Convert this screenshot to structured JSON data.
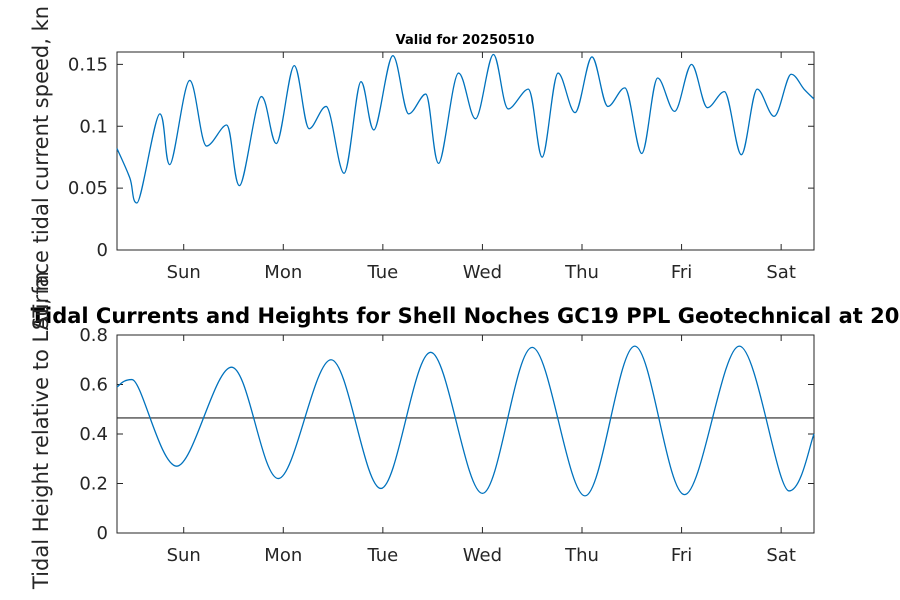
{
  "chart_data": [
    {
      "type": "line",
      "title": "Valid for 20250510",
      "ylabel": "Surface tidal current speed, kn",
      "xlabel": "",
      "x_tick_labels": [
        "Sun",
        "Mon",
        "Tue",
        "Wed",
        "Thu",
        "Fri",
        "Sat"
      ],
      "x_range_days": [
        0,
        7
      ],
      "x_tick_days": [
        0.67,
        1.67,
        2.67,
        3.67,
        4.67,
        5.67,
        6.67
      ],
      "ylim": [
        0,
        0.16
      ],
      "y_ticks": [
        0,
        0.05,
        0.1,
        0.15
      ],
      "y_tick_labels": [
        "0",
        "0.05",
        "0.1",
        "0.15"
      ],
      "series": [
        {
          "color": "#0072bd",
          "x": [
            0.0,
            0.13,
            0.2,
            0.43,
            0.53,
            0.73,
            0.9,
            1.1,
            1.23,
            1.45,
            1.6,
            1.78,
            1.93,
            2.1,
            2.28,
            2.45,
            2.58,
            2.77,
            2.93,
            3.1,
            3.23,
            3.43,
            3.6,
            3.78,
            3.93,
            4.13,
            4.27,
            4.43,
            4.6,
            4.77,
            4.93,
            5.1,
            5.27,
            5.43,
            5.6,
            5.77,
            5.93,
            6.1,
            6.27,
            6.43,
            6.6,
            6.77,
            6.9,
            7.0
          ],
          "values": [
            0.082,
            0.058,
            0.038,
            0.11,
            0.069,
            0.137,
            0.084,
            0.101,
            0.052,
            0.124,
            0.086,
            0.149,
            0.098,
            0.116,
            0.062,
            0.136,
            0.097,
            0.157,
            0.11,
            0.126,
            0.07,
            0.143,
            0.106,
            0.158,
            0.114,
            0.13,
            0.075,
            0.143,
            0.111,
            0.156,
            0.116,
            0.131,
            0.078,
            0.139,
            0.112,
            0.15,
            0.115,
            0.128,
            0.077,
            0.13,
            0.108,
            0.142,
            0.13,
            0.122
          ]
        }
      ]
    },
    {
      "type": "line",
      "title": "Tidal Currents and Heights for Shell Noches   GC19 PPL  Geotechnical at 20",
      "ylabel": "Tidal Height relative to LAT, m",
      "xlabel": "",
      "x_tick_labels": [
        "Sun",
        "Mon",
        "Tue",
        "Wed",
        "Thu",
        "Fri",
        "Sat"
      ],
      "x_range_days": [
        0,
        7
      ],
      "x_tick_days": [
        0.67,
        1.67,
        2.67,
        3.67,
        4.67,
        5.67,
        6.67
      ],
      "ylim": [
        0,
        0.8
      ],
      "y_ticks": [
        0,
        0.2,
        0.4,
        0.6,
        0.8
      ],
      "y_tick_labels": [
        "0",
        "0.2",
        "0.4",
        "0.6",
        "0.8"
      ],
      "reference_line": {
        "value": 0.465,
        "color": "#262626"
      },
      "series": [
        {
          "color": "#0072bd",
          "x": [
            0.0,
            0.15,
            0.6,
            1.15,
            1.62,
            2.15,
            2.65,
            3.15,
            3.67,
            4.17,
            4.7,
            5.2,
            5.7,
            6.25,
            6.75,
            7.0
          ],
          "values": [
            0.59,
            0.62,
            0.27,
            0.67,
            0.22,
            0.7,
            0.18,
            0.73,
            0.16,
            0.75,
            0.15,
            0.755,
            0.155,
            0.755,
            0.17,
            0.4
          ]
        }
      ]
    }
  ]
}
